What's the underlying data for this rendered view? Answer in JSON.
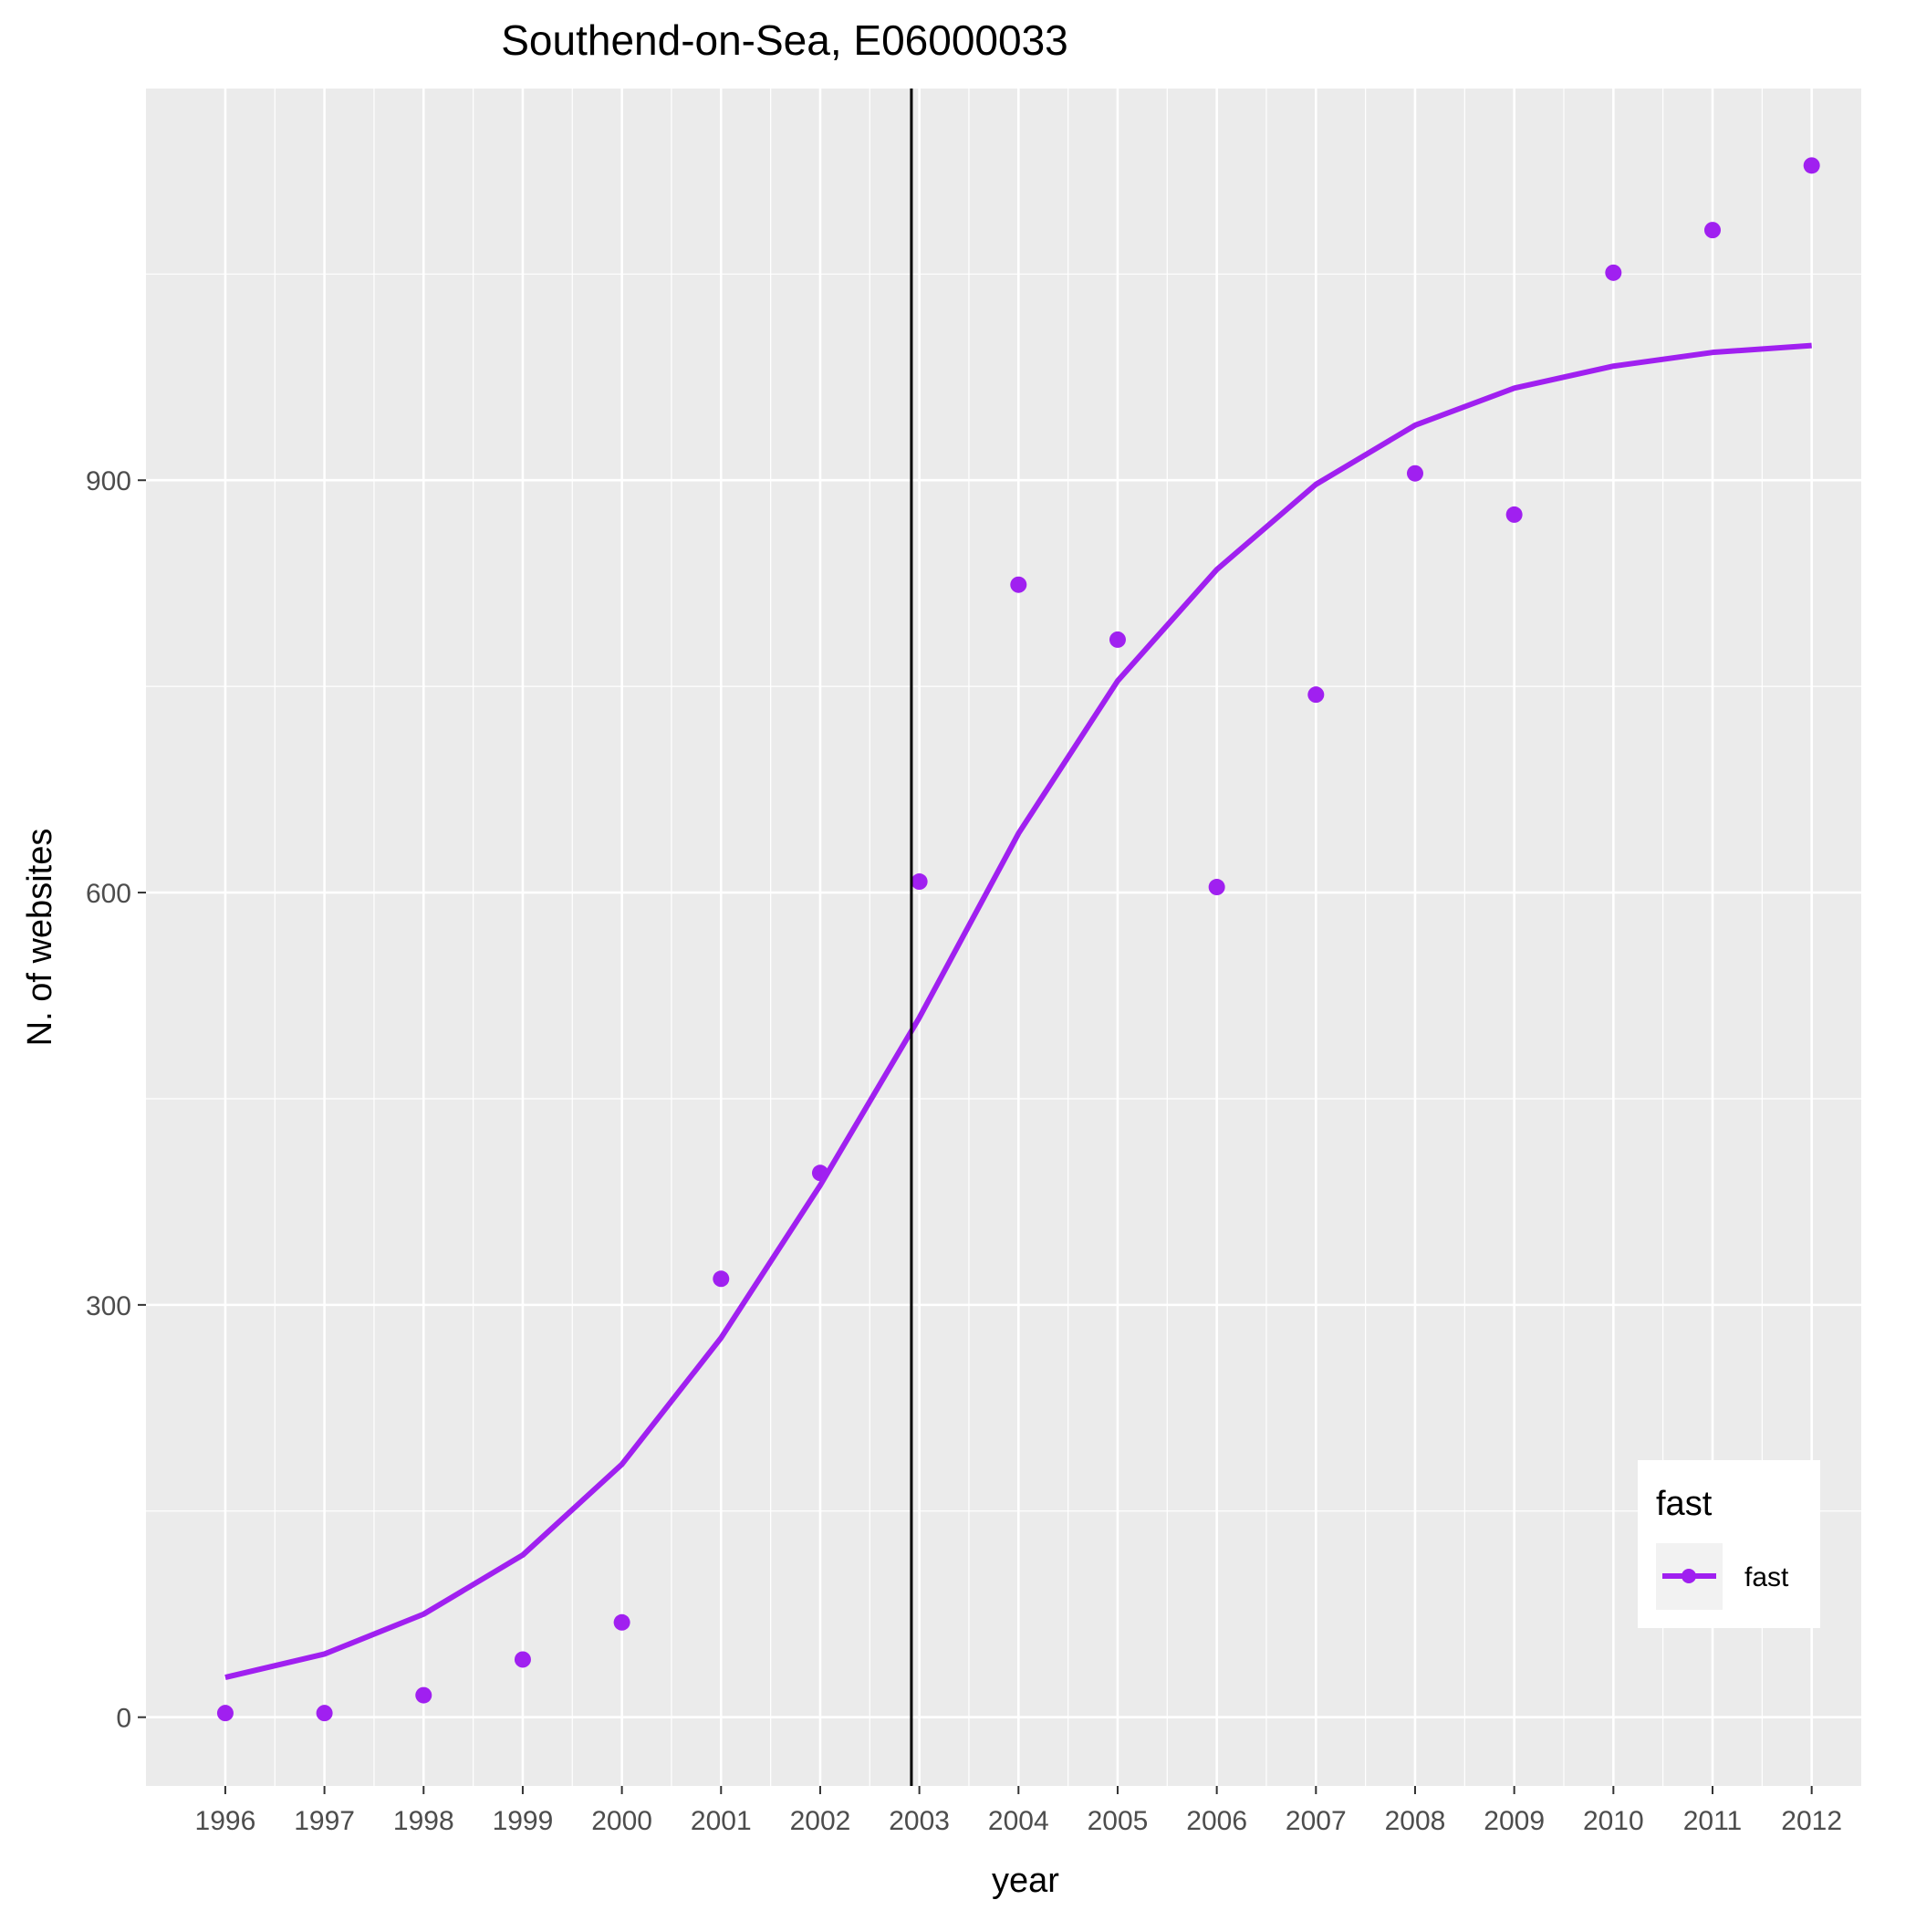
{
  "chart_data": {
    "type": "scatter",
    "title": "Southend-on-Sea, E06000033",
    "xlabel": "year",
    "ylabel": "N. of websites",
    "x": [
      1996,
      1997,
      1998,
      1999,
      2000,
      2001,
      2002,
      2003,
      2004,
      2005,
      2006,
      2007,
      2008,
      2009,
      2010,
      2011,
      2012
    ],
    "x_tick_labels": [
      "1996",
      "1997",
      "1998",
      "1999",
      "2000",
      "2001",
      "2002",
      "2003",
      "2004",
      "2005",
      "2006",
      "2007",
      "2008",
      "2009",
      "2010",
      "2011",
      "2012"
    ],
    "y_ticks": [
      0,
      300,
      600,
      900
    ],
    "y_tick_labels": [
      "0",
      "300",
      "600",
      "900"
    ],
    "xlim": [
      1995.2,
      2012.5
    ],
    "ylim": [
      -50,
      1185
    ],
    "grid": true,
    "series": [
      {
        "name": "fast",
        "color": "#A020F0",
        "points": [
          3,
          3,
          16,
          42,
          69,
          319,
          396,
          608,
          824,
          784,
          604,
          744,
          905,
          875,
          1051,
          1082,
          1129
        ],
        "fit_line": [
          29,
          46,
          75,
          118,
          184,
          276,
          387,
          509,
          643,
          754,
          835,
          897,
          940,
          967,
          983,
          993,
          998
        ]
      }
    ],
    "vline_x": 2002.92,
    "legend": {
      "title": "fast",
      "entries": [
        "fast"
      ],
      "position": "bottom-right"
    }
  }
}
